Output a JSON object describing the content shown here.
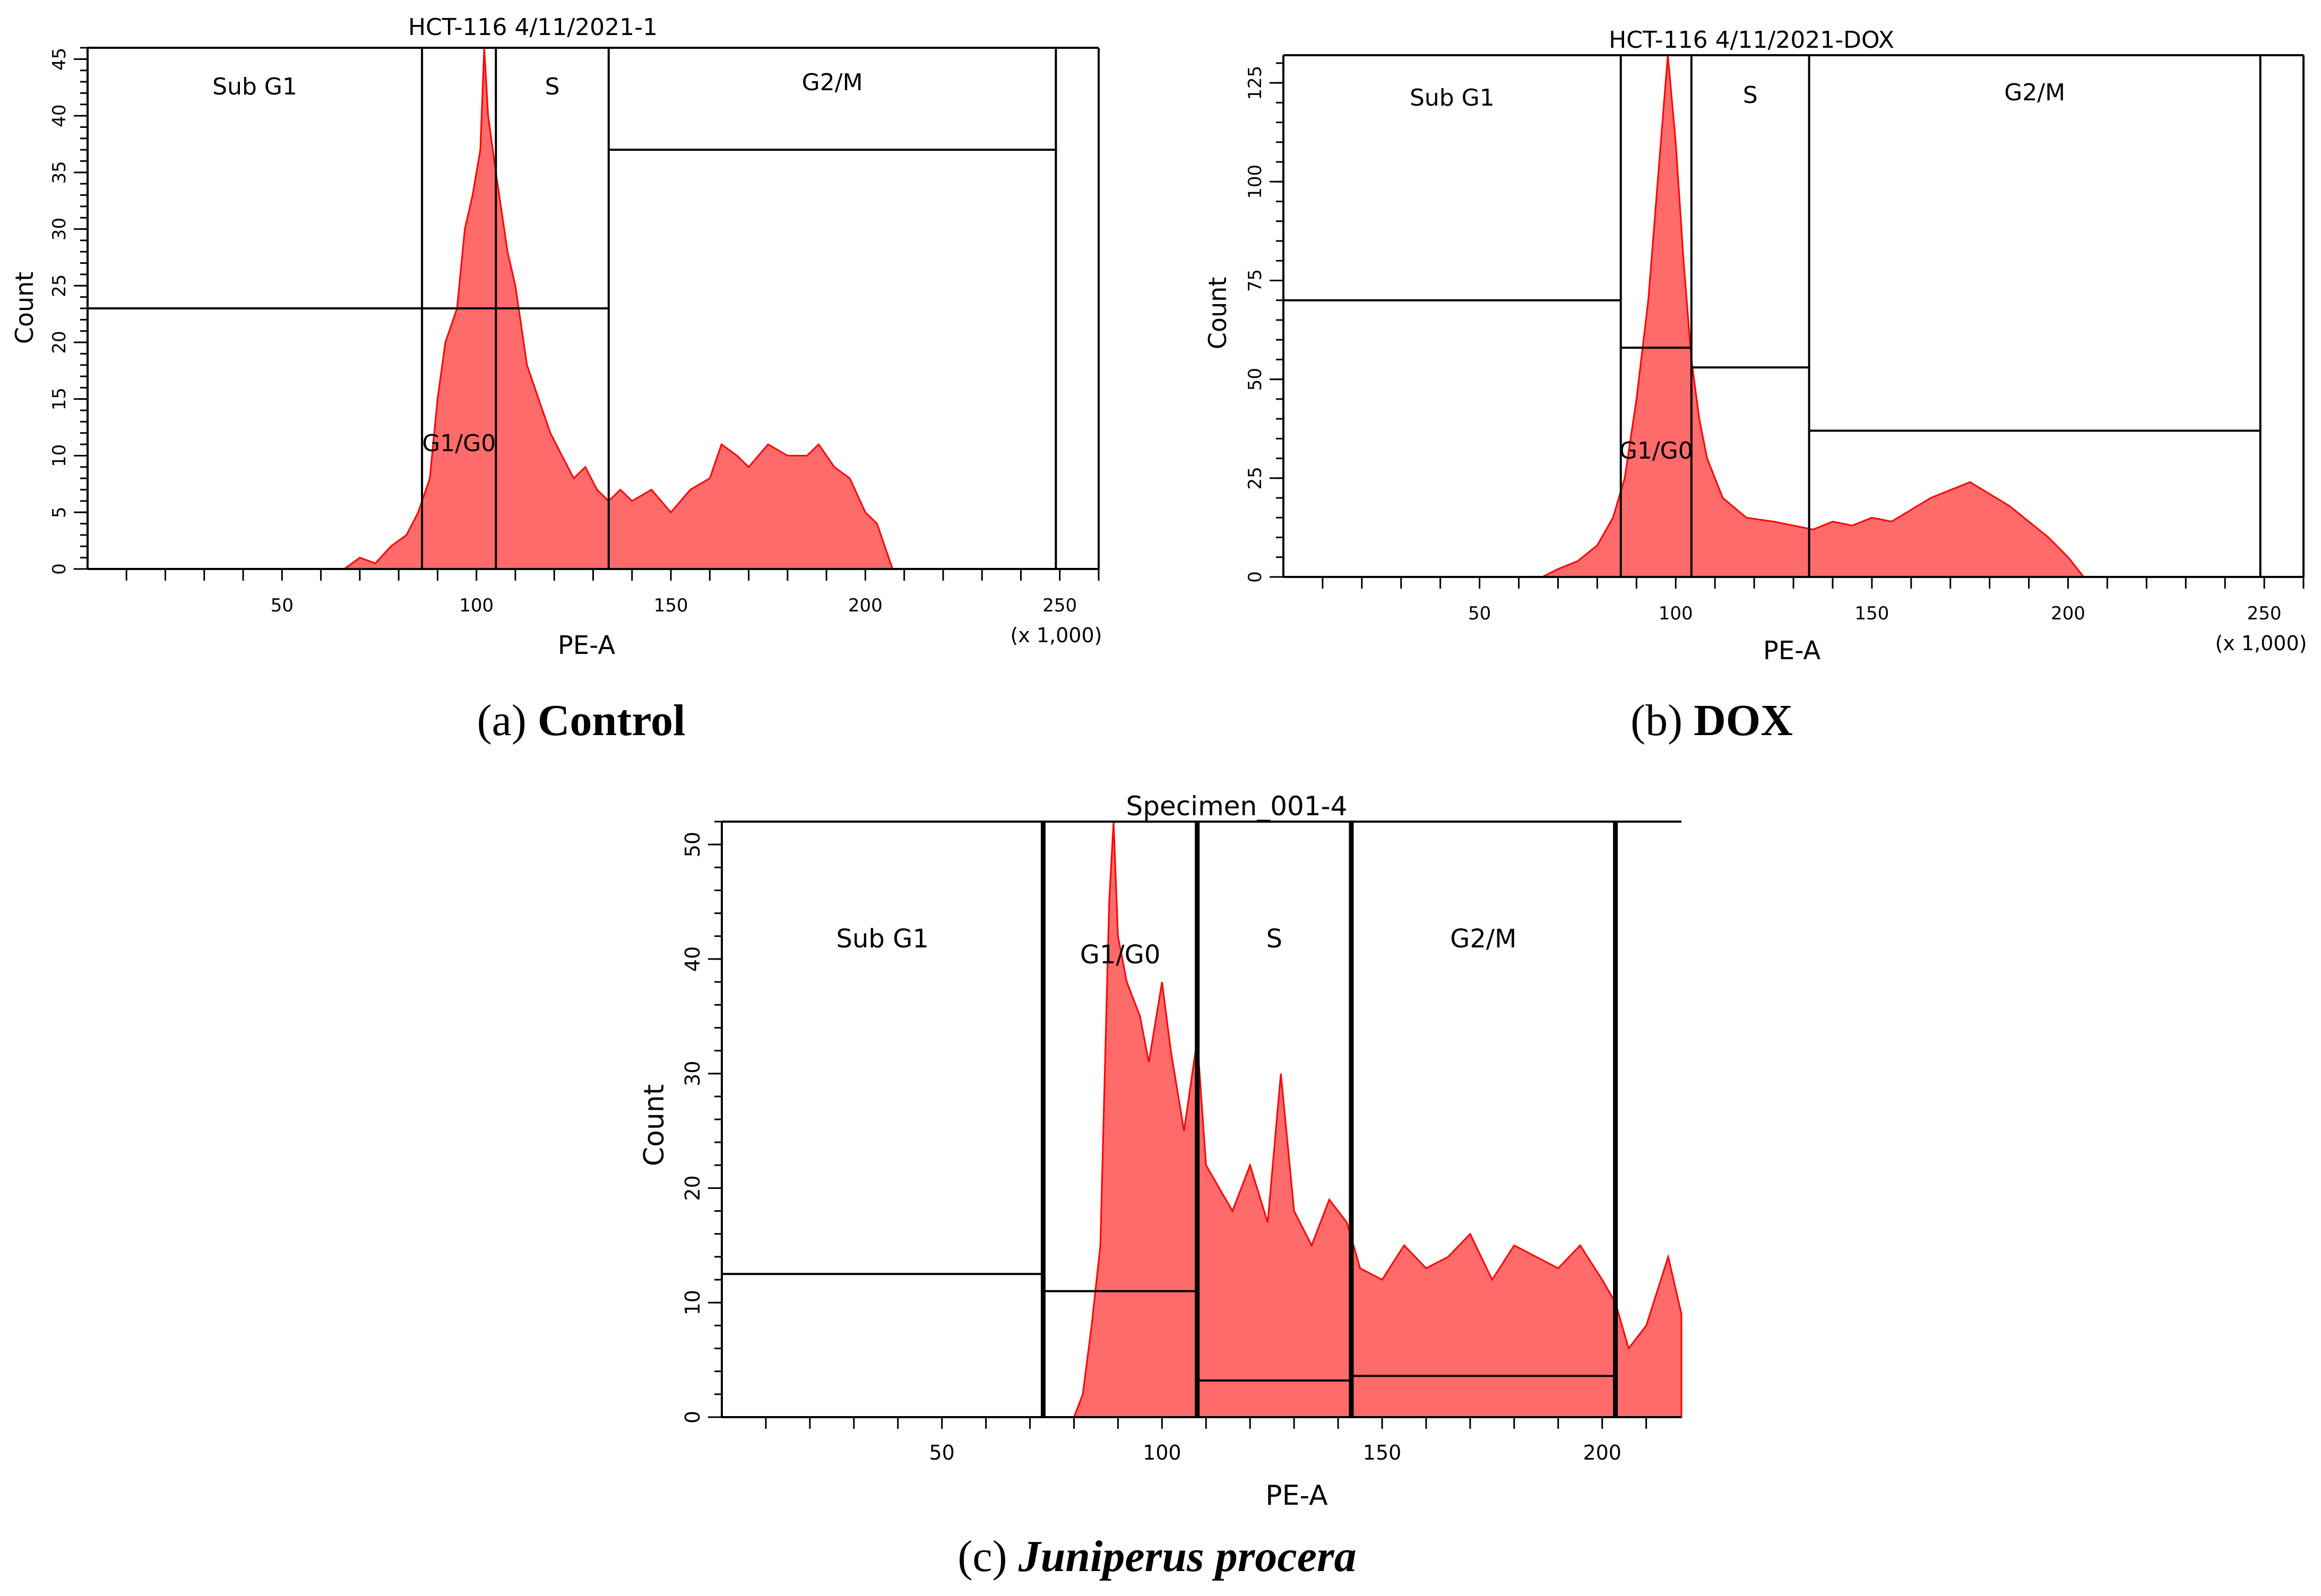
{
  "colors": {
    "fill": "#ff6b6b",
    "stroke": "#ff0000",
    "axis": "#000000",
    "background": "#ffffff"
  },
  "chart_data": [
    {
      "type": "area",
      "panel": "a",
      "title": "HCT-116 4/11/2021-1",
      "xlabel": "PE-A",
      "x_multiplier": "(x 1,000)",
      "ylabel": "Count",
      "xlim": [
        0,
        260
      ],
      "ylim": [
        0,
        46
      ],
      "x_ticks": [
        "50",
        "100",
        "150",
        "200",
        "250"
      ],
      "y_ticks": [
        "0",
        "5",
        "10",
        "15",
        "20",
        "25",
        "30",
        "35",
        "40",
        "45"
      ],
      "caption_letter": "a",
      "caption_text": "Control",
      "gates": [
        {
          "label": "Sub G1",
          "x_start": 0,
          "x_end": 86,
          "level": 23
        },
        {
          "label": "G1/G0",
          "x_start": 86,
          "x_end": 105,
          "level": 23
        },
        {
          "label": "S",
          "x_start": 105,
          "x_end": 134,
          "level": 23
        },
        {
          "label": "G2/M",
          "x_start": 134,
          "x_end": 249,
          "level": 37
        }
      ],
      "histogram": [
        [
          66,
          0
        ],
        [
          70,
          1
        ],
        [
          74,
          0.5
        ],
        [
          78,
          2
        ],
        [
          82,
          3
        ],
        [
          85,
          5
        ],
        [
          88,
          8
        ],
        [
          90,
          15
        ],
        [
          92,
          20
        ],
        [
          95,
          23
        ],
        [
          97,
          30
        ],
        [
          99,
          33
        ],
        [
          101,
          37
        ],
        [
          102,
          46
        ],
        [
          103,
          40
        ],
        [
          105,
          35
        ],
        [
          108,
          28
        ],
        [
          110,
          25
        ],
        [
          113,
          18
        ],
        [
          116,
          15
        ],
        [
          119,
          12
        ],
        [
          122,
          10
        ],
        [
          125,
          8
        ],
        [
          128,
          9
        ],
        [
          131,
          7
        ],
        [
          134,
          6
        ],
        [
          137,
          7
        ],
        [
          140,
          6
        ],
        [
          145,
          7
        ],
        [
          150,
          5
        ],
        [
          155,
          7
        ],
        [
          160,
          8
        ],
        [
          163,
          11
        ],
        [
          167,
          10
        ],
        [
          170,
          9
        ],
        [
          175,
          11
        ],
        [
          180,
          10
        ],
        [
          185,
          10
        ],
        [
          188,
          11
        ],
        [
          192,
          9
        ],
        [
          196,
          8
        ],
        [
          200,
          5
        ],
        [
          203,
          4
        ],
        [
          207,
          0
        ]
      ]
    },
    {
      "type": "area",
      "panel": "b",
      "title": "HCT-116 4/11/2021-DOX",
      "xlabel": "PE-A",
      "x_multiplier": "(x 1,000)",
      "ylabel": "Count",
      "xlim": [
        0,
        260
      ],
      "ylim": [
        0,
        132
      ],
      "x_ticks": [
        "50",
        "100",
        "150",
        "200",
        "250"
      ],
      "y_ticks": [
        "0",
        "25",
        "50",
        "75",
        "100",
        "125"
      ],
      "caption_letter": "b",
      "caption_text": "DOX",
      "gates": [
        {
          "label": "Sub G1",
          "x_start": 0,
          "x_end": 86,
          "level": 70
        },
        {
          "label": "G1/G0",
          "x_start": 86,
          "x_end": 104,
          "level": 58
        },
        {
          "label": "S",
          "x_start": 104,
          "x_end": 134,
          "level": 53
        },
        {
          "label": "G2/M",
          "x_start": 134,
          "x_end": 249,
          "level": 37
        }
      ],
      "histogram": [
        [
          66,
          0
        ],
        [
          70,
          2
        ],
        [
          75,
          4
        ],
        [
          80,
          8
        ],
        [
          84,
          15
        ],
        [
          87,
          25
        ],
        [
          90,
          45
        ],
        [
          93,
          70
        ],
        [
          95,
          95
        ],
        [
          97,
          120
        ],
        [
          98,
          132
        ],
        [
          100,
          110
        ],
        [
          102,
          80
        ],
        [
          104,
          55
        ],
        [
          106,
          40
        ],
        [
          108,
          30
        ],
        [
          112,
          20
        ],
        [
          118,
          15
        ],
        [
          125,
          14
        ],
        [
          130,
          13
        ],
        [
          135,
          12
        ],
        [
          140,
          14
        ],
        [
          145,
          13
        ],
        [
          150,
          15
        ],
        [
          155,
          14
        ],
        [
          160,
          17
        ],
        [
          165,
          20
        ],
        [
          170,
          22
        ],
        [
          175,
          24
        ],
        [
          180,
          21
        ],
        [
          185,
          18
        ],
        [
          190,
          14
        ],
        [
          195,
          10
        ],
        [
          200,
          5
        ],
        [
          204,
          0
        ]
      ]
    },
    {
      "type": "area",
      "panel": "c",
      "title": "Specimen_001-4",
      "xlabel": "PE-A",
      "ylabel": "Count",
      "xlim": [
        0,
        218
      ],
      "ylim": [
        0,
        52
      ],
      "x_ticks": [
        "50",
        "100",
        "150",
        "200"
      ],
      "y_ticks": [
        "0",
        "10",
        "20",
        "30",
        "40",
        "50"
      ],
      "caption_letter": "c",
      "caption_text": "Juniperus procera",
      "gates": [
        {
          "label": "Sub G1",
          "x_start": 0,
          "x_end": 73,
          "level": 12.5
        },
        {
          "label": "G1/G0",
          "x_start": 73,
          "x_end": 108,
          "level": 11
        },
        {
          "label": "S",
          "x_start": 108,
          "x_end": 143,
          "level": 3.2
        },
        {
          "label": "G2/M",
          "x_start": 143,
          "x_end": 203,
          "level": 3.6
        }
      ],
      "histogram": [
        [
          80,
          0
        ],
        [
          82,
          2
        ],
        [
          84,
          8
        ],
        [
          86,
          15
        ],
        [
          87,
          30
        ],
        [
          88,
          45
        ],
        [
          89,
          52
        ],
        [
          90,
          42
        ],
        [
          92,
          38
        ],
        [
          95,
          35
        ],
        [
          97,
          31
        ],
        [
          100,
          38
        ],
        [
          102,
          32
        ],
        [
          105,
          25
        ],
        [
          108,
          33
        ],
        [
          110,
          22
        ],
        [
          113,
          20
        ],
        [
          116,
          18
        ],
        [
          120,
          22
        ],
        [
          124,
          17
        ],
        [
          127,
          30
        ],
        [
          130,
          18
        ],
        [
          134,
          15
        ],
        [
          138,
          19
        ],
        [
          142,
          17
        ],
        [
          145,
          13
        ],
        [
          150,
          12
        ],
        [
          155,
          15
        ],
        [
          160,
          13
        ],
        [
          165,
          14
        ],
        [
          170,
          16
        ],
        [
          175,
          12
        ],
        [
          180,
          15
        ],
        [
          185,
          14
        ],
        [
          190,
          13
        ],
        [
          195,
          15
        ],
        [
          200,
          12
        ],
        [
          203,
          10
        ],
        [
          206,
          6
        ],
        [
          210,
          8
        ],
        [
          215,
          14
        ],
        [
          218,
          9
        ]
      ]
    }
  ]
}
